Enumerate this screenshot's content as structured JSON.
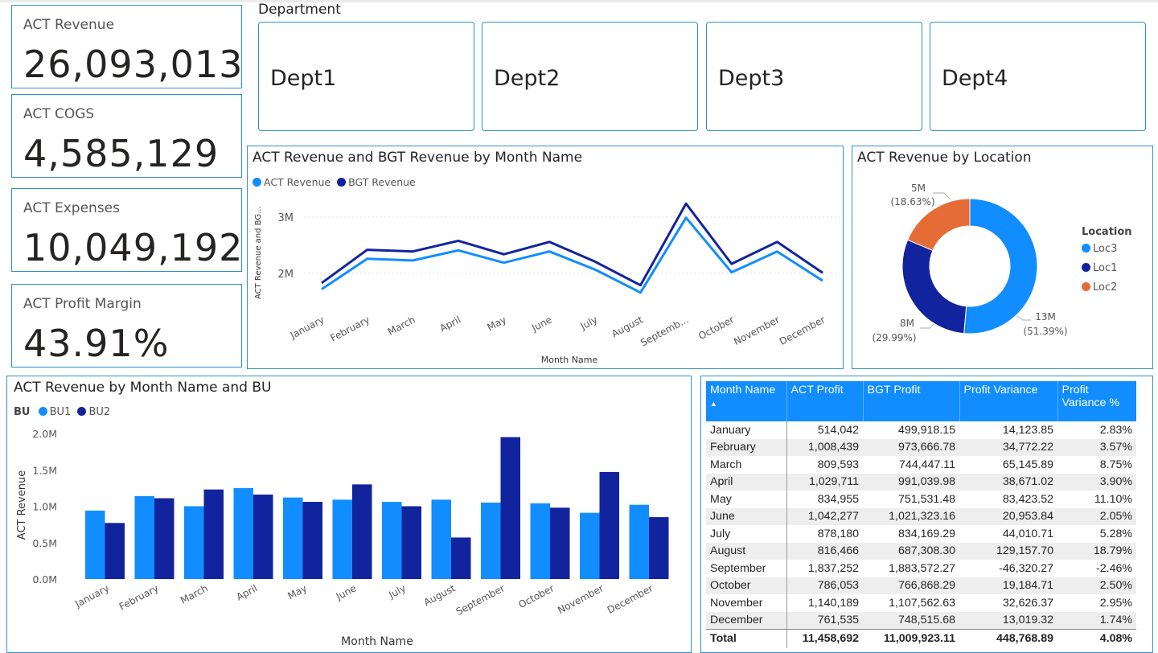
{
  "kpis": [
    {
      "label": "ACT Revenue",
      "value": "26,093,013"
    },
    {
      "label": "ACT COGS",
      "value": "4,585,129"
    },
    {
      "label": "ACT Expenses",
      "value": "10,049,192"
    },
    {
      "label": "ACT Profit Margin",
      "value": "43.91%"
    }
  ],
  "department": {
    "heading": "Department",
    "items": [
      "Dept1",
      "Dept2",
      "Dept3",
      "Dept4"
    ]
  },
  "colors": {
    "accent": "#118dff",
    "dark": "#12239e",
    "orange": "#e66c37",
    "border": "#2f8fd0"
  },
  "line_chart": {
    "title": "ACT Revenue and BGT Revenue by Month Name",
    "legend": [
      "ACT Revenue",
      "BGT Revenue"
    ],
    "yaxis_label": "ACT Revenue and BG...",
    "xaxis_label": "Month Name",
    "ytick_labels": [
      "3M",
      "2M"
    ]
  },
  "donut_chart": {
    "title": "ACT Revenue by Location",
    "legend_title": "Location",
    "legend": [
      "Loc3",
      "Loc1",
      "Loc2"
    ],
    "labels": [
      {
        "value": "5M",
        "pct": "(18.63%)"
      },
      {
        "value": "8M",
        "pct": "(29.99%)"
      },
      {
        "value": "13M",
        "pct": "(51.39%)"
      }
    ]
  },
  "bar_chart": {
    "title": "ACT Revenue by Month Name and BU",
    "legend_title": "BU",
    "legend": [
      "BU1",
      "BU2"
    ],
    "yaxis_label": "ACT Revenue",
    "xaxis_label": "Month Name",
    "ytick_labels": [
      "2.0M",
      "1.5M",
      "1.0M",
      "0.5M",
      "0.0M"
    ]
  },
  "table": {
    "headers": [
      "Month Name",
      "ACT Profit",
      "BGT Profit",
      "Profit Variance",
      "Profit Variance %"
    ],
    "sort_indicator": "▲",
    "rows": [
      [
        "January",
        "514,042",
        "499,918.15",
        "14,123.85",
        "2.83%"
      ],
      [
        "February",
        "1,008,439",
        "973,666.78",
        "34,772.22",
        "3.57%"
      ],
      [
        "March",
        "809,593",
        "744,447.11",
        "65,145.89",
        "8.75%"
      ],
      [
        "April",
        "1,029,711",
        "991,039.98",
        "38,671.02",
        "3.90%"
      ],
      [
        "May",
        "834,955",
        "751,531.48",
        "83,423.52",
        "11.10%"
      ],
      [
        "June",
        "1,042,277",
        "1,021,323.16",
        "20,953.84",
        "2.05%"
      ],
      [
        "July",
        "878,180",
        "834,169.29",
        "44,010.71",
        "5.28%"
      ],
      [
        "August",
        "816,466",
        "687,308.30",
        "129,157.70",
        "18.79%"
      ],
      [
        "September",
        "1,837,252",
        "1,883,572.27",
        "-46,320.27",
        "-2.46%"
      ],
      [
        "October",
        "786,053",
        "766,868.29",
        "19,184.71",
        "2.50%"
      ],
      [
        "November",
        "1,140,189",
        "1,107,562.63",
        "32,626.37",
        "2.95%"
      ],
      [
        "December",
        "761,535",
        "748,515.68",
        "13,019.32",
        "1.74%"
      ]
    ],
    "total": [
      "Total",
      "11,458,692",
      "11,009,923.11",
      "448,768.89",
      "4.08%"
    ]
  },
  "chart_data": [
    {
      "type": "line",
      "title": "ACT Revenue and BGT Revenue by Month Name",
      "xlabel": "Month Name",
      "ylabel": "ACT Revenue and BG...",
      "categories": [
        "January",
        "February",
        "March",
        "April",
        "May",
        "June",
        "July",
        "August",
        "Septemb...",
        "October",
        "November",
        "December"
      ],
      "series": [
        {
          "name": "ACT Revenue",
          "values": [
            1.72,
            2.26,
            2.23,
            2.41,
            2.19,
            2.39,
            2.07,
            1.66,
            2.99,
            2.02,
            2.39,
            1.87
          ]
        },
        {
          "name": "BGT Revenue",
          "values": [
            1.83,
            2.42,
            2.39,
            2.58,
            2.34,
            2.56,
            2.21,
            1.79,
            3.24,
            2.17,
            2.56,
            2.01
          ]
        }
      ],
      "ylim": [
        1.4,
        3.4
      ],
      "unit": "M"
    },
    {
      "type": "pie",
      "title": "ACT Revenue by Location",
      "categories": [
        "Loc3",
        "Loc1",
        "Loc2"
      ],
      "values": [
        51.39,
        29.99,
        18.63
      ],
      "unit": "%"
    },
    {
      "type": "bar",
      "title": "ACT Revenue by Month Name and BU",
      "xlabel": "Month Name",
      "ylabel": "ACT Revenue",
      "categories": [
        "January",
        "February",
        "March",
        "April",
        "May",
        "June",
        "July",
        "August",
        "September",
        "October",
        "November",
        "December"
      ],
      "series": [
        {
          "name": "BU1",
          "values": [
            0.94,
            1.14,
            1.0,
            1.25,
            1.12,
            1.09,
            1.06,
            1.09,
            1.05,
            1.04,
            0.91,
            1.02
          ]
        },
        {
          "name": "BU2",
          "values": [
            0.77,
            1.11,
            1.23,
            1.16,
            1.06,
            1.3,
            1.0,
            0.57,
            1.95,
            0.98,
            1.47,
            0.85
          ]
        }
      ],
      "ylim": [
        0,
        2.0
      ],
      "unit": "M"
    }
  ]
}
